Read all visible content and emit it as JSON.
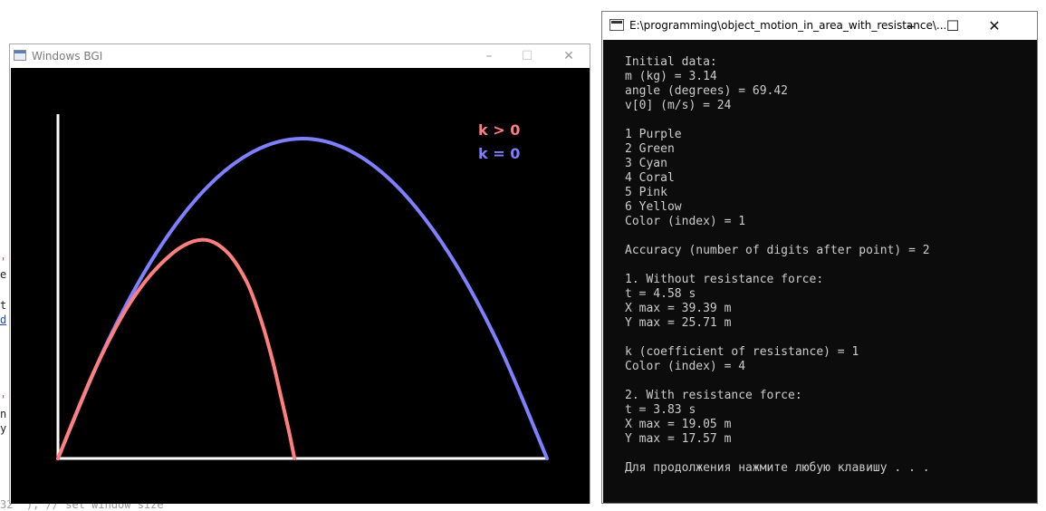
{
  "background_editor": {
    "fragments": [
      "'",
      "e",
      "t",
      "d",
      "'",
      "n",
      "y",
      "32\" ); // set window size"
    ]
  },
  "bgi_window": {
    "title": "Windows BGI",
    "controls": {
      "minimize": "–",
      "maximize": "☐",
      "close": "✕"
    },
    "legend": [
      {
        "label": "k > 0",
        "color": "#ff7f7f"
      },
      {
        "label": "k = 0",
        "color": "#7f7fff"
      }
    ],
    "colors": {
      "canvas": "#000000",
      "axes": "#ffffff"
    }
  },
  "chart_data": {
    "type": "line",
    "title": "",
    "xlabel": "",
    "ylabel": "",
    "xlim": [
      0,
      41
    ],
    "ylim": [
      0,
      26.9
    ],
    "grid": false,
    "legend_position": "top-right",
    "series": [
      {
        "name": "k = 0",
        "color": "#7f7fff",
        "x": [
          0,
          3.94,
          7.88,
          11.82,
          15.76,
          19.7,
          23.63,
          27.57,
          31.51,
          35.45,
          39.39
        ],
        "y": [
          0,
          9.25,
          16.45,
          21.6,
          24.68,
          25.71,
          24.68,
          21.6,
          16.45,
          9.25,
          0
        ]
      },
      {
        "name": "k > 0",
        "color": "#ff7f7f",
        "x": [
          0,
          3.0,
          6.0,
          9.0,
          11.5,
          13.5,
          15.2,
          16.4,
          17.3,
          18.0,
          18.6,
          19.05
        ],
        "y": [
          0,
          7.2,
          12.8,
          16.3,
          17.57,
          16.7,
          14.2,
          11.0,
          7.8,
          4.8,
          2.2,
          0
        ]
      }
    ]
  },
  "console_window": {
    "title": "E:\\programming\\object_motion_in_area_with_resistance\\...",
    "controls": {
      "minimize": "–",
      "maximize": "☐",
      "close": "✕"
    },
    "lines": [
      "Initial data:",
      "m (kg) = 3.14",
      "angle (degrees) = 69.42",
      "v[0] (m/s) = 24",
      "",
      "1 Purple",
      "2 Green",
      "3 Cyan",
      "4 Coral",
      "5 Pink",
      "6 Yellow",
      "Color (index) = 1",
      "",
      "Accuracy (number of digits after point) = 2",
      "",
      "1. Without resistance force:",
      "t = 4.58 s",
      "X max = 39.39 m",
      "Y max = 25.71 m",
      "",
      "k (coefficient of resistance) = 1",
      "Color (index) = 4",
      "",
      "2. With resistance force:",
      "t = 3.83 s",
      "X max = 19.05 m",
      "Y max = 17.57 m",
      "",
      "Для продолжения нажмите любую клавишу . . ."
    ]
  }
}
